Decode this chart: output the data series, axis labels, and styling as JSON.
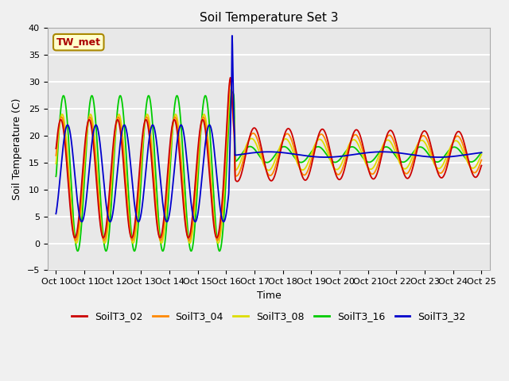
{
  "title": "Soil Temperature Set 3",
  "xlabel": "Time",
  "ylabel": "Soil Temperature (C)",
  "ylim": [
    -5,
    40
  ],
  "yticks": [
    -5,
    0,
    5,
    10,
    15,
    20,
    25,
    30,
    35,
    40
  ],
  "colors": {
    "SoilT3_02": "#cc0000",
    "SoilT3_04": "#ff8800",
    "SoilT3_08": "#dddd00",
    "SoilT3_16": "#00cc00",
    "SoilT3_32": "#0000cc"
  },
  "annotation_text": "TW_met",
  "bg_color": "#e8e8e8",
  "fig_color": "#f0f0f0",
  "grid_color": "white",
  "legend_entries": [
    "SoilT3_02",
    "SoilT3_04",
    "SoilT3_08",
    "SoilT3_16",
    "SoilT3_32"
  ]
}
